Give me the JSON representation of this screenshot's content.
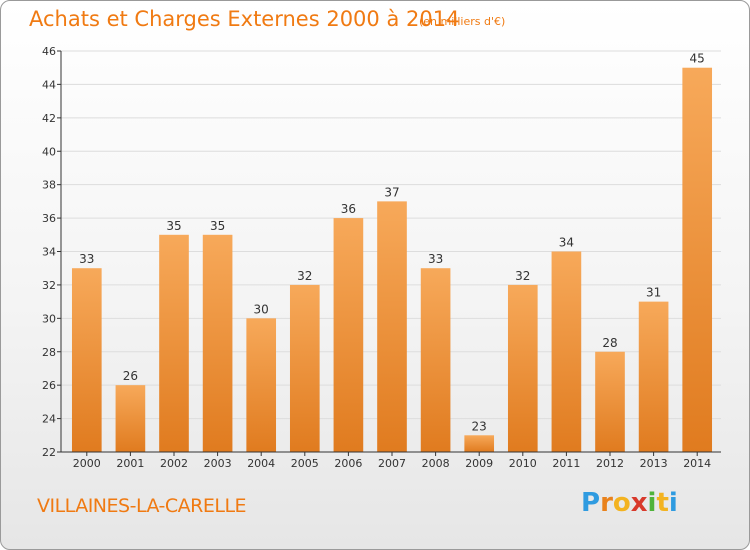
{
  "header": {
    "title": "Achats et Charges Externes 2000 à 2014",
    "unit": "(en milliers d'€)"
  },
  "footer": {
    "commune": "VILLAINES-LA-CARELLE",
    "logo_letters": [
      "P",
      "r",
      "o",
      "x",
      "i",
      "t",
      "i"
    ],
    "logo_colors": [
      "#2f9be0",
      "#e9821c",
      "#f3b320",
      "#d8392b",
      "#4fb33a",
      "#f3b320",
      "#2f9be0"
    ]
  },
  "colors": {
    "bar_light": "#f7a95a",
    "bar_dark": "#e07b1f",
    "title": "#f07a12",
    "axis": "#333333",
    "grid": "#dddddd"
  },
  "chart_data": {
    "type": "bar",
    "categories": [
      "2000",
      "2001",
      "2002",
      "2003",
      "2004",
      "2005",
      "2006",
      "2007",
      "2008",
      "2009",
      "2010",
      "2011",
      "2012",
      "2013",
      "2014"
    ],
    "values": [
      33,
      26,
      35,
      35,
      30,
      32,
      36,
      37,
      33,
      23,
      32,
      34,
      28,
      31,
      45
    ],
    "ylim": [
      22,
      46
    ],
    "yticks": [
      22,
      24,
      26,
      28,
      30,
      32,
      34,
      36,
      38,
      40,
      42,
      44,
      46
    ],
    "grid": true,
    "data_labels": true
  }
}
